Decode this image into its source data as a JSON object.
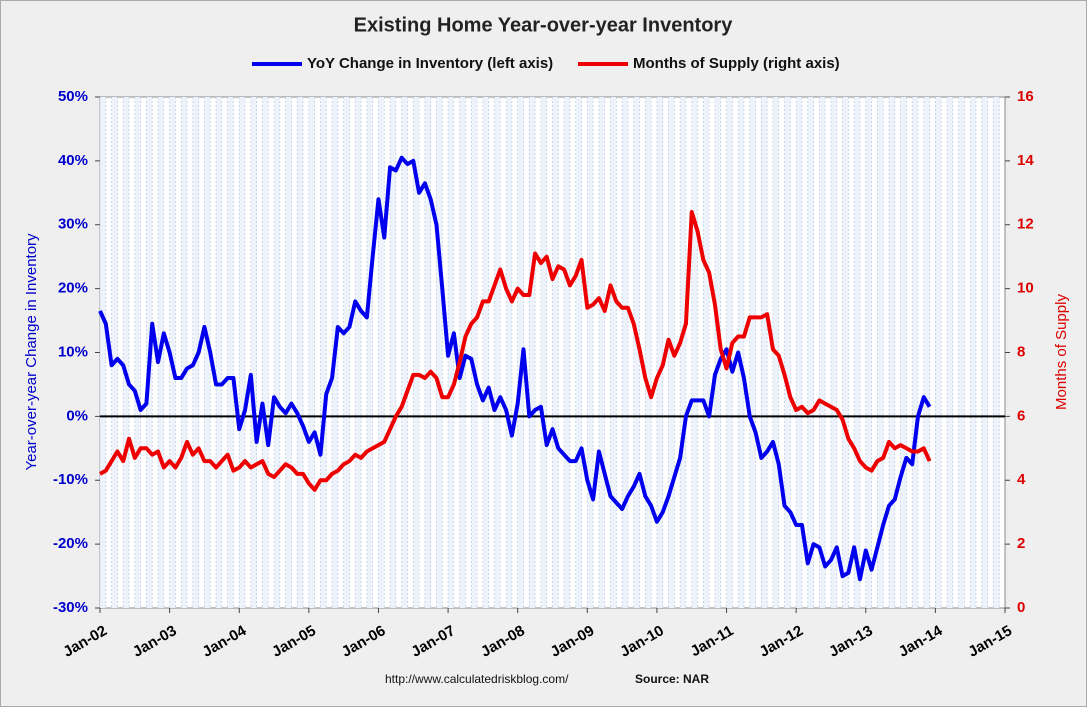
{
  "chart_data": {
    "type": "line",
    "title": "Existing Home Year-over-year Inventory",
    "ylabel": "Year-over-year Change in Inventory",
    "y2label": "Months of Supply",
    "source_url": "http://www.calculatedriskblog.com/",
    "source": "Source: NAR",
    "categories": [
      "Jan-02",
      null,
      null,
      null,
      null,
      null,
      null,
      null,
      null,
      null,
      null,
      null,
      "Jan-03",
      null,
      null,
      null,
      null,
      null,
      null,
      null,
      null,
      null,
      null,
      null,
      "Jan-04",
      null,
      null,
      null,
      null,
      null,
      null,
      null,
      null,
      null,
      null,
      null,
      "Jan-05",
      null,
      null,
      null,
      null,
      null,
      null,
      null,
      null,
      null,
      null,
      null,
      "Jan-06",
      null,
      null,
      null,
      null,
      null,
      null,
      null,
      null,
      null,
      null,
      null,
      "Jan-07",
      null,
      null,
      null,
      null,
      null,
      null,
      null,
      null,
      null,
      null,
      null,
      "Jan-08",
      null,
      null,
      null,
      null,
      null,
      null,
      null,
      null,
      null,
      null,
      null,
      "Jan-09",
      null,
      null,
      null,
      null,
      null,
      null,
      null,
      null,
      null,
      null,
      null,
      "Jan-10",
      null,
      null,
      null,
      null,
      null,
      null,
      null,
      null,
      null,
      null,
      null,
      "Jan-11",
      null,
      null,
      null,
      null,
      null,
      null,
      null,
      null,
      null,
      null,
      null,
      "Jan-12",
      null,
      null,
      null,
      null,
      null,
      null,
      null,
      null,
      null,
      null,
      null,
      "Jan-13",
      null,
      null,
      null,
      null,
      null,
      null,
      null,
      null,
      null,
      null,
      null,
      "Jan-14",
      null,
      null,
      null,
      null,
      null,
      null,
      null,
      null,
      null,
      null,
      null,
      "Jan-15"
    ],
    "series": [
      {
        "name": "YoY Change in Inventory (left axis)",
        "color": "#0000ee",
        "axis": "y",
        "values": [
          16.5,
          14.5,
          8,
          9,
          8,
          5,
          4,
          1,
          2,
          14.5,
          8.5,
          13,
          10,
          6,
          6,
          7.5,
          8,
          10,
          14,
          10,
          5,
          5,
          6,
          6,
          -2,
          1,
          6.5,
          -4,
          2,
          -4.5,
          3,
          1.5,
          0.5,
          2,
          0.5,
          -1.5,
          -4,
          -2.5,
          -6,
          3.5,
          6,
          14,
          13,
          14,
          18,
          16.5,
          15.5,
          25,
          34,
          28,
          39,
          38.5,
          40.5,
          39.5,
          40,
          35,
          36.5,
          34,
          30,
          20,
          9.5,
          13,
          6,
          9.5,
          9,
          5,
          2.5,
          4.5,
          1,
          3,
          1,
          -3,
          2,
          10.5,
          0,
          1,
          1.5,
          -4.5,
          -2,
          -5,
          -6,
          -7,
          -7,
          -5,
          -10,
          -13,
          -5.5,
          -9,
          -12.5,
          -13.5,
          -14.5,
          -12.5,
          -11,
          -9,
          -12.5,
          -14,
          -16.5,
          -15,
          -12.5,
          -9.5,
          -6.5,
          0,
          2.5,
          2.5,
          2.5,
          0,
          6.5,
          9,
          10.5,
          7,
          10,
          6,
          0,
          -2.5,
          -6.5,
          -5.5,
          -4,
          -7.5,
          -14,
          -15,
          -17,
          -17,
          -23,
          -20,
          -20.5,
          -23.5,
          -22.5,
          -20.5,
          -25,
          -24.5,
          -20.5,
          -25.5,
          -21,
          -24,
          -20.5,
          -17,
          -14,
          -13,
          -9.5,
          -6.5,
          -7.5,
          0,
          3,
          1.5,
          null,
          null,
          null,
          null,
          null,
          null,
          null,
          null,
          null,
          null,
          null,
          null,
          null
        ]
      },
      {
        "name": "Months of Supply (right axis)",
        "color": "#ee0000",
        "axis": "y2",
        "values": [
          4.2,
          4.3,
          4.6,
          4.9,
          4.6,
          5.3,
          4.7,
          5.0,
          5.0,
          4.8,
          4.9,
          4.4,
          4.6,
          4.4,
          4.7,
          5.2,
          4.8,
          5.0,
          4.6,
          4.6,
          4.4,
          4.6,
          4.8,
          4.3,
          4.4,
          4.6,
          4.4,
          4.5,
          4.6,
          4.2,
          4.1,
          4.3,
          4.5,
          4.4,
          4.2,
          4.2,
          3.9,
          3.7,
          4.0,
          4.0,
          4.2,
          4.3,
          4.5,
          4.6,
          4.8,
          4.7,
          4.9,
          5.0,
          5.1,
          5.2,
          5.6,
          6.0,
          6.3,
          6.8,
          7.3,
          7.3,
          7.2,
          7.4,
          7.2,
          6.6,
          6.6,
          7.0,
          7.7,
          8.5,
          8.9,
          9.1,
          9.6,
          9.6,
          10.1,
          10.6,
          10.0,
          9.6,
          10.0,
          9.8,
          9.8,
          11.1,
          10.8,
          11.0,
          10.3,
          10.7,
          10.6,
          10.1,
          10.4,
          10.9,
          9.4,
          9.5,
          9.7,
          9.3,
          10.1,
          9.6,
          9.4,
          9.4,
          8.9,
          8.1,
          7.2,
          6.6,
          7.2,
          7.6,
          8.4,
          7.9,
          8.3,
          8.9,
          12.4,
          11.8,
          10.9,
          10.5,
          9.5,
          8.1,
          7.5,
          8.3,
          8.5,
          8.5,
          9.1,
          9.1,
          9.1,
          9.2,
          8.1,
          7.9,
          7.3,
          6.6,
          6.2,
          6.3,
          6.1,
          6.2,
          6.5,
          6.4,
          6.3,
          6.2,
          5.9,
          5.3,
          5.0,
          4.6,
          4.4,
          4.3,
          4.6,
          4.7,
          5.2,
          5.0,
          5.1,
          5.0,
          4.9,
          4.9,
          5.0,
          4.6,
          null,
          null,
          null,
          null,
          null,
          null,
          null,
          null,
          null,
          null,
          null,
          null,
          null
        ]
      }
    ],
    "ylim": [
      -30,
      50
    ],
    "yticks": [
      {
        "value": -30,
        "label": "-30%"
      },
      {
        "value": -20,
        "label": "-20%"
      },
      {
        "value": -10,
        "label": "-10%"
      },
      {
        "value": 0,
        "label": "0%"
      },
      {
        "value": 10,
        "label": "10%"
      },
      {
        "value": 20,
        "label": "20%"
      },
      {
        "value": 30,
        "label": "30%"
      },
      {
        "value": 40,
        "label": "40%"
      },
      {
        "value": 50,
        "label": "50%"
      }
    ],
    "y2lim": [
      0,
      16
    ],
    "y2ticks": [
      0,
      2,
      4,
      6,
      8,
      10,
      12,
      14,
      16
    ],
    "ylabel_color": "#0000cc",
    "y2label_color": "#dd0000"
  }
}
